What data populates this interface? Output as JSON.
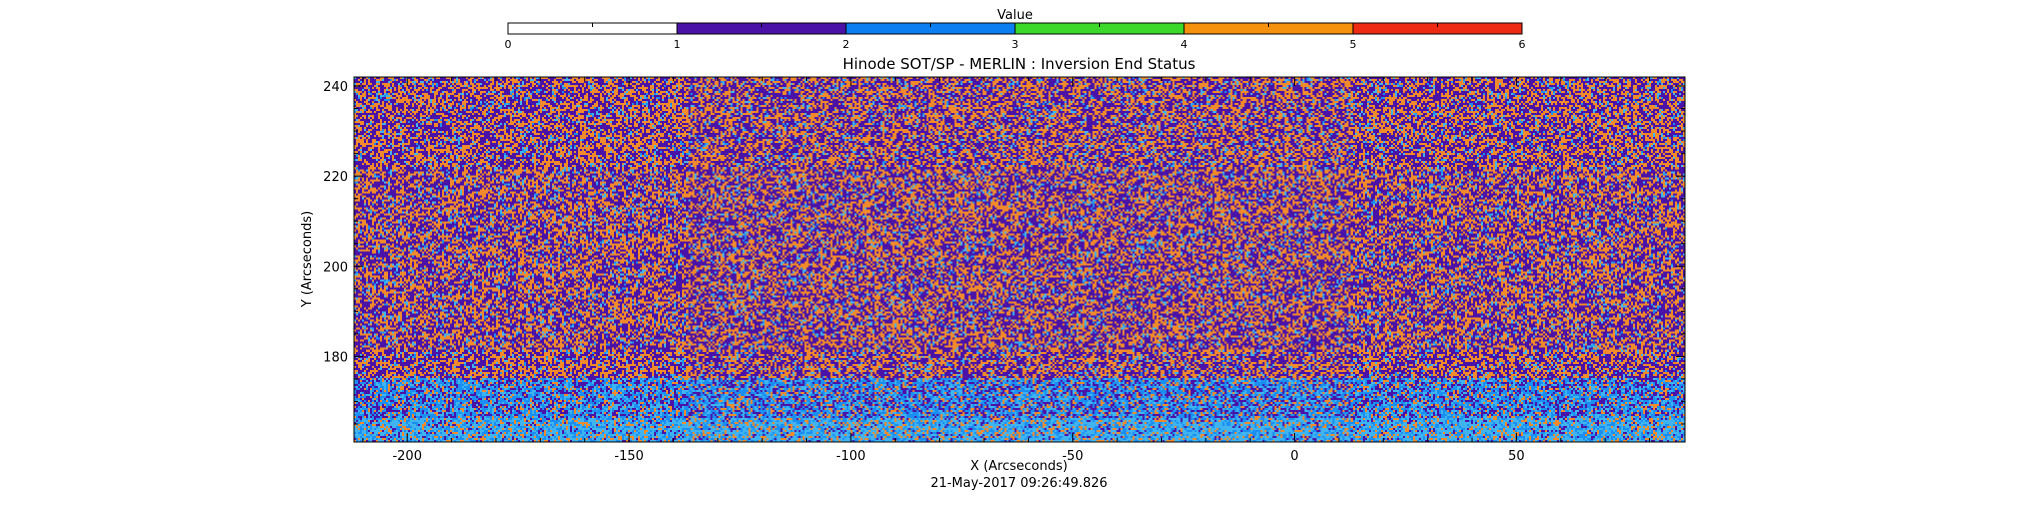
{
  "chart_data": {
    "type": "heatmap",
    "title": "Hinode SOT/SP - MERLIN : Inversion End Status",
    "xlabel": "X (Arcseconds)",
    "ylabel": "Y (Arcseconds)",
    "timestamp": "21-May-2017 09:26:49.826",
    "xlim": [
      -212,
      88
    ],
    "ylim": [
      161,
      242
    ],
    "x_ticks": [
      -200,
      -150,
      -100,
      -50,
      0,
      50
    ],
    "y_ticks": [
      180,
      200,
      220,
      240
    ],
    "colorbar": {
      "title": "Value",
      "range": [
        0,
        6
      ],
      "ticks": [
        0,
        1,
        2,
        3,
        4,
        5,
        6
      ],
      "bins": [
        {
          "from": 0,
          "to": 1,
          "color": "#ffffff"
        },
        {
          "from": 1,
          "to": 2,
          "color": "#4b12a8"
        },
        {
          "from": 2,
          "to": 3,
          "color": "#0b7ef2"
        },
        {
          "from": 3,
          "to": 4,
          "color": "#3dd92a"
        },
        {
          "from": 4,
          "to": 5,
          "color": "#f5910c"
        },
        {
          "from": 5,
          "to": 6,
          "color": "#ee2b12"
        }
      ]
    },
    "dominant_values": [
      1,
      2,
      4
    ],
    "palette": {
      "purple": "#4b12a8",
      "blue": "#1a8ef2",
      "cyan": "#3fb4f0",
      "orange": "#f08a2a"
    }
  }
}
